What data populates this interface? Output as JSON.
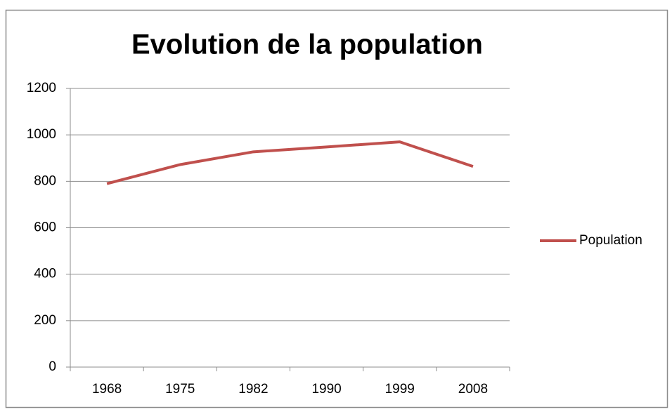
{
  "chart_data": {
    "type": "line",
    "title": "Evolution de la population",
    "categories": [
      "1968",
      "1975",
      "1982",
      "1990",
      "1999",
      "2008"
    ],
    "series": [
      {
        "name": "Population",
        "color": "#c0504d",
        "values": [
          790,
          872,
          927,
          948,
          970,
          864
        ]
      }
    ],
    "ylim": [
      0,
      1200
    ],
    "yticks": [
      0,
      200,
      400,
      600,
      800,
      1000,
      1200
    ],
    "grid": true,
    "legend": "right"
  }
}
